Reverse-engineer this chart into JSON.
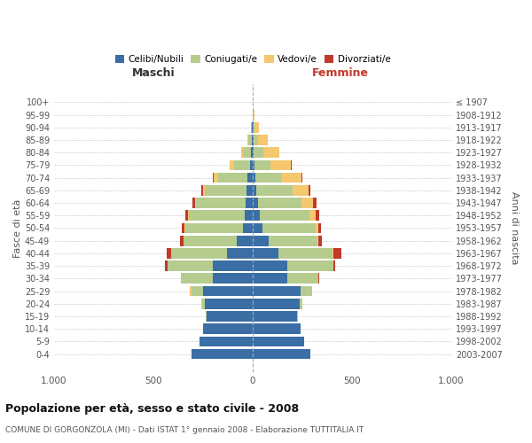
{
  "age_groups": [
    "0-4",
    "5-9",
    "10-14",
    "15-19",
    "20-24",
    "25-29",
    "30-34",
    "35-39",
    "40-44",
    "45-49",
    "50-54",
    "55-59",
    "60-64",
    "65-69",
    "70-74",
    "75-79",
    "80-84",
    "85-89",
    "90-94",
    "95-99",
    "100+"
  ],
  "birth_years": [
    "2003-2007",
    "1998-2002",
    "1993-1997",
    "1988-1992",
    "1983-1987",
    "1978-1982",
    "1973-1977",
    "1968-1972",
    "1963-1967",
    "1958-1962",
    "1953-1957",
    "1948-1952",
    "1943-1947",
    "1938-1942",
    "1933-1937",
    "1928-1932",
    "1923-1927",
    "1918-1922",
    "1913-1917",
    "1908-1912",
    "≤ 1907"
  ],
  "males": {
    "celibi": [
      310,
      270,
      250,
      230,
      240,
      250,
      200,
      200,
      130,
      80,
      50,
      40,
      35,
      30,
      25,
      15,
      10,
      5,
      3,
      1,
      0
    ],
    "coniugati": [
      0,
      0,
      0,
      5,
      15,
      60,
      160,
      230,
      280,
      270,
      290,
      280,
      250,
      210,
      150,
      80,
      40,
      15,
      5,
      1,
      0
    ],
    "vedovi": [
      0,
      0,
      0,
      0,
      5,
      5,
      0,
      0,
      0,
      0,
      5,
      5,
      5,
      10,
      20,
      20,
      10,
      5,
      2,
      0,
      0
    ],
    "divorziati": [
      0,
      0,
      0,
      0,
      0,
      0,
      0,
      10,
      25,
      15,
      10,
      15,
      15,
      10,
      5,
      0,
      0,
      0,
      0,
      0,
      0
    ]
  },
  "females": {
    "nubili": [
      290,
      260,
      240,
      225,
      235,
      240,
      175,
      175,
      130,
      80,
      50,
      35,
      25,
      20,
      15,
      10,
      5,
      5,
      3,
      0,
      0
    ],
    "coniugate": [
      0,
      0,
      0,
      5,
      15,
      60,
      155,
      230,
      270,
      245,
      265,
      250,
      220,
      180,
      130,
      80,
      50,
      20,
      5,
      2,
      0
    ],
    "vedove": [
      0,
      0,
      0,
      0,
      0,
      0,
      0,
      0,
      5,
      5,
      15,
      30,
      60,
      80,
      100,
      100,
      80,
      50,
      25,
      5,
      0
    ],
    "divorziate": [
      0,
      0,
      0,
      0,
      0,
      0,
      5,
      10,
      40,
      20,
      15,
      20,
      15,
      10,
      5,
      5,
      0,
      0,
      0,
      0,
      0
    ]
  },
  "colors": {
    "celibi": "#3a6ea5",
    "coniugati": "#b5cc8e",
    "vedovi": "#f5c76e",
    "divorziati": "#c0392b"
  },
  "xlim": 1000,
  "title": "Popolazione per età, sesso e stato civile - 2008",
  "subtitle": "COMUNE DI GORGONZOLA (MI) - Dati ISTAT 1° gennaio 2008 - Elaborazione TUTTITALIA.IT",
  "ylabel_left": "Fasce di età",
  "ylabel_right": "Anni di nascita",
  "xlabel_left": "Maschi",
  "xlabel_right": "Femmine",
  "legend_labels": [
    "Celibi/Nubili",
    "Coniugati/e",
    "Vedovi/e",
    "Divorziati/e"
  ],
  "bg_color": "#ffffff",
  "grid_color": "#cccccc"
}
